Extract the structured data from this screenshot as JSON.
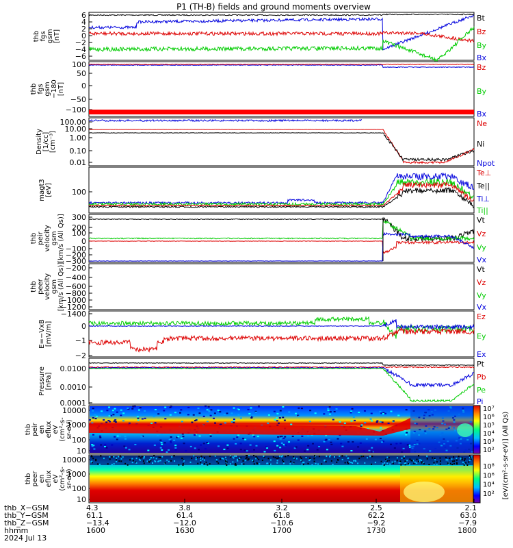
{
  "title": "P1 (TH-B) fields and ground moments overview",
  "colors": {
    "black": "#000000",
    "red": "#dd0000",
    "green": "#00cc00",
    "blue": "#0000dd"
  },
  "panels": [
    {
      "id": "fgs",
      "ylabel": [
        "thb",
        "fgs",
        "gsm",
        "[nT]"
      ],
      "ticks": [
        "6",
        "4",
        "2",
        "0",
        "−2",
        "−4",
        "−6"
      ],
      "legend": [
        {
          "label": "Bt",
          "color": "#000000"
        },
        {
          "label": "Bz",
          "color": "#dd0000"
        },
        {
          "label": "By",
          "color": "#00cc00"
        },
        {
          "label": "Bx",
          "color": "#0000dd"
        }
      ]
    },
    {
      "id": "fgs-dsl",
      "ylabel": [
        "thb",
        "fgs",
        "gsm",
        "−180",
        "[nT]"
      ],
      "ticks": [
        "100",
        "50",
        "0",
        "−50",
        "−100"
      ],
      "legend": [
        {
          "label": "Bz",
          "color": "#dd0000"
        },
        {
          "label": "By",
          "color": "#00cc00"
        },
        {
          "label": "Bx",
          "color": "#0000dd"
        }
      ]
    },
    {
      "id": "density",
      "ylabel": [
        "Density",
        "[1/cc]",
        "[cm⁻³]"
      ],
      "ticks": [
        "100.00",
        "10.00",
        "1.00",
        "0.10",
        "0.01"
      ],
      "legend": [
        {
          "label": "Ne",
          "color": "#dd0000"
        },
        {
          "label": "Ni",
          "color": "#000000"
        },
        {
          "label": "Npot",
          "color": "#0000dd"
        }
      ]
    },
    {
      "id": "temperature",
      "ylabel": [
        "magt3",
        "[eV]"
      ],
      "ticks": [
        "100"
      ],
      "legend": [
        {
          "label": "Te⊥",
          "color": "#dd0000"
        },
        {
          "label": "Te||",
          "color": "#000000"
        },
        {
          "label": "Ti⊥",
          "color": "#0000dd"
        },
        {
          "label": "Ti||",
          "color": "#00cc00"
        }
      ]
    },
    {
      "id": "peir-velocity",
      "ylabel": [
        "thb",
        "peir",
        "velocity",
        "gsm",
        "[km/s (All Qs)]"
      ],
      "ticks": [
        "300",
        "200",
        "100",
        "0",
        "−100",
        "−200",
        "−300"
      ],
      "legend": [
        {
          "label": "Vt",
          "color": "#000000"
        },
        {
          "label": "Vz",
          "color": "#dd0000"
        },
        {
          "label": "Vy",
          "color": "#00cc00"
        },
        {
          "label": "Vx",
          "color": "#0000dd"
        }
      ]
    },
    {
      "id": "peer-velocity",
      "ylabel": [
        "thb",
        "peer",
        "velocity",
        "gsm",
        "[km/s (All Qs)]"
      ],
      "ticks": [
        "−200",
        "−400",
        "−600",
        "−800",
        "−1000",
        "−1200",
        "−1400"
      ],
      "legend": [
        {
          "label": "Vt",
          "color": "#000000"
        },
        {
          "label": "Vz",
          "color": "#dd0000"
        },
        {
          "label": "Vy",
          "color": "#00cc00"
        },
        {
          "label": "Vx",
          "color": "#0000dd"
        }
      ]
    },
    {
      "id": "efield",
      "ylabel": [
        "E=−VxB",
        "[mV/m]"
      ],
      "ticks": [
        "0",
        "−1",
        "−2"
      ],
      "legend": [
        {
          "label": "Ez",
          "color": "#dd0000"
        },
        {
          "label": "Ey",
          "color": "#00cc00"
        },
        {
          "label": "Ex",
          "color": "#0000dd"
        }
      ]
    },
    {
      "id": "pressure",
      "ylabel": [
        "Pressure",
        "[nPa]"
      ],
      "ticks": [
        "0.0100",
        "0.0010",
        "0.0001"
      ],
      "legend": [
        {
          "label": "Pt",
          "color": "#000000"
        },
        {
          "label": "Pb",
          "color": "#dd0000"
        },
        {
          "label": "Pe",
          "color": "#00cc00"
        },
        {
          "label": "Pi",
          "color": "#0000dd"
        }
      ]
    },
    {
      "id": "peir-spec",
      "ylabel": [
        "thb",
        "peir",
        "en",
        "eflux",
        "eV",
        "(cm²-s-",
        "sr-eV)"
      ],
      "ticks": [
        "10000",
        "1000",
        "100",
        "10"
      ],
      "colorbar_ticks": [
        "10⁷",
        "10⁶",
        "10⁵",
        "10⁴",
        "10³",
        "10²"
      ]
    },
    {
      "id": "peer-spec",
      "ylabel": [
        "thb",
        "peer",
        "en",
        "eflux",
        "eV",
        "(cm²-s-",
        "sr-eV)"
      ],
      "ticks": [
        "10000",
        "1000",
        "100",
        "10"
      ],
      "colorbar_ticks": [
        "10⁸",
        "10⁶",
        "10⁴",
        "10²"
      ]
    }
  ],
  "colorbar_label": "[eV/(cm²-s-sr-eV)] (All Qs)",
  "xaxis": {
    "labels": [
      "thb_X−GSM",
      "thb_Y−GSM",
      "thb_Z−GSM",
      "hhmm",
      "2024 Jul 13"
    ],
    "ticks": [
      {
        "x": "4.3",
        "y": "61.1",
        "z": "−13.4",
        "t": "1600"
      },
      {
        "x": "3.8",
        "y": "61.4",
        "z": "−12.0",
        "t": "1630"
      },
      {
        "x": "3.2",
        "y": "61.8",
        "z": "−10.6",
        "t": "1700"
      },
      {
        "x": "2.5",
        "y": "62.2",
        "z": "−9.2",
        "t": "1730"
      },
      {
        "x": "2.1",
        "y": "63.0",
        "z": "−7.9",
        "t": "1800"
      }
    ]
  },
  "chart_data": {
    "type": "line",
    "title": "P1 (TH-B) fields and ground moments overview",
    "x": [
      "1600",
      "1630",
      "1700",
      "1730",
      "1800"
    ],
    "xlabel": "hhmm",
    "date": "2024 Jul 13",
    "series": [
      {
        "name": "Bt",
        "values": [
          6.0,
          6.0,
          6.2,
          6.1,
          6.3
        ]
      },
      {
        "name": "Bz",
        "values": [
          1.5,
          1.0,
          1.2,
          1.0,
          0.5
        ]
      },
      {
        "name": "By",
        "values": [
          -3.5,
          -3.8,
          -3.2,
          -3.5,
          -5.5
        ]
      },
      {
        "name": "Bx",
        "values": [
          4.0,
          4.5,
          4.8,
          5.0,
          6.5
        ]
      },
      {
        "name": "Ne",
        "values": [
          8.0,
          8.0,
          8.0,
          7.0,
          0.1
        ]
      },
      {
        "name": "Ni",
        "values": [
          5.0,
          5.0,
          5.0,
          5.0,
          0.08
        ]
      },
      {
        "name": "Npot",
        "values": [
          90,
          90,
          90,
          90,
          0.1
        ]
      }
    ]
  }
}
